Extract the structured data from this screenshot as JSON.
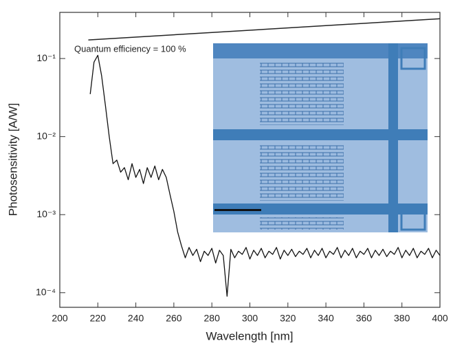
{
  "chart_data": {
    "type": "line",
    "xlabel": "Wavelength [nm]",
    "ylabel": "Photosensitivity [A/W]",
    "xlim": [
      200,
      400
    ],
    "xticks": [
      200,
      220,
      240,
      260,
      280,
      300,
      320,
      340,
      360,
      380,
      400
    ],
    "ylim": [
      6.5e-05,
      0.39
    ],
    "log_y": true,
    "yticks": [
      {
        "value": 0.0001,
        "label": "10⁻⁴"
      },
      {
        "value": 0.001,
        "label": "10⁻³"
      },
      {
        "value": 0.01,
        "label": "10⁻²"
      },
      {
        "value": 0.1,
        "label": "10⁻¹"
      }
    ],
    "series": [
      {
        "color": "#111111",
        "x": [
          216,
          218,
          220,
          222,
          224,
          226,
          228,
          230,
          232,
          234,
          236,
          238,
          240,
          242,
          244,
          246,
          248,
          250,
          252,
          254,
          256,
          258,
          260,
          262,
          264,
          266,
          268,
          270,
          272,
          274,
          276,
          278,
          280,
          282,
          284,
          286,
          288,
          290,
          292,
          294,
          296,
          298,
          300,
          302,
          304,
          306,
          308,
          310,
          312,
          314,
          316,
          318,
          320,
          322,
          324,
          326,
          328,
          330,
          332,
          334,
          336,
          338,
          340,
          342,
          344,
          346,
          348,
          350,
          352,
          354,
          356,
          358,
          360,
          362,
          364,
          366,
          368,
          370,
          372,
          374,
          376,
          378,
          380,
          382,
          384,
          386,
          388,
          390,
          392,
          394,
          396,
          398,
          400
        ],
        "values": [
          0.035,
          0.09,
          0.11,
          0.06,
          0.025,
          0.01,
          0.0045,
          0.005,
          0.0035,
          0.004,
          0.0028,
          0.0045,
          0.003,
          0.0038,
          0.0025,
          0.004,
          0.003,
          0.0042,
          0.0028,
          0.0038,
          0.003,
          0.0018,
          0.0011,
          0.0006,
          0.0004,
          0.00028,
          0.00038,
          0.0003,
          0.00036,
          0.00025,
          0.00034,
          0.0003,
          0.00037,
          0.00024,
          0.00035,
          0.0003,
          9e-05,
          0.00036,
          0.00028,
          0.00034,
          0.00031,
          0.00038,
          0.00027,
          0.00035,
          0.0003,
          0.00037,
          0.00028,
          0.00034,
          0.00031,
          0.00038,
          0.00027,
          0.00035,
          0.0003,
          0.00036,
          0.00029,
          0.00034,
          0.00031,
          0.00037,
          0.00028,
          0.00035,
          0.0003,
          0.00037,
          0.00028,
          0.00034,
          0.00031,
          0.00038,
          0.00028,
          0.00035,
          0.0003,
          0.00037,
          0.00028,
          0.00034,
          0.00031,
          0.00037,
          0.00028,
          0.00035,
          0.0003,
          0.00036,
          0.00029,
          0.00034,
          0.00031,
          0.00038,
          0.00028,
          0.00035,
          0.0003,
          0.00037,
          0.00028,
          0.00034,
          0.00031,
          0.00037,
          0.00028,
          0.00035,
          0.0003
        ]
      },
      {
        "name": "Quantum efficiency = 100 %",
        "color": "#222222",
        "x": [
          215,
          400
        ],
        "values": [
          0.173,
          0.323
        ]
      }
    ]
  }
}
